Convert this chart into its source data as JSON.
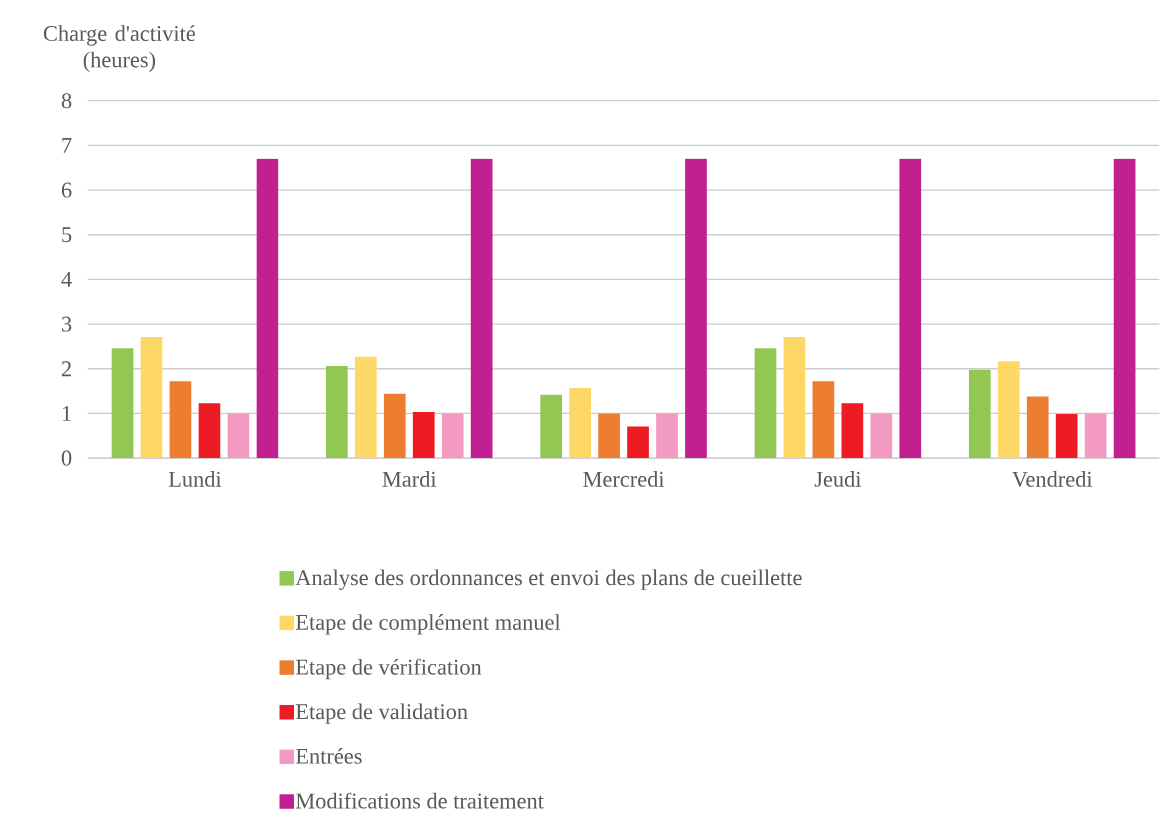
{
  "chart_data": {
    "type": "bar",
    "ylabel": "Charge d'activité (heures)",
    "categories": [
      "Lundi",
      "Mardi",
      "Mercredi",
      "Jeudi",
      "Vendredi"
    ],
    "series": [
      {
        "name": "Analyse des ordonnances et envoi des plans de cueillette",
        "color": "#92c754",
        "values": [
          2.46,
          2.06,
          1.42,
          2.46,
          1.98
        ]
      },
      {
        "name": "Etape de complément manuel",
        "color": "#fdd866",
        "values": [
          2.71,
          2.27,
          1.57,
          2.71,
          2.17
        ]
      },
      {
        "name": "Etape de vérification",
        "color": "#ed7d31",
        "values": [
          1.72,
          1.44,
          1.0,
          1.72,
          1.38
        ]
      },
      {
        "name": "Etape de validation",
        "color": "#ed1c24",
        "values": [
          1.23,
          1.03,
          0.71,
          1.23,
          0.99
        ]
      },
      {
        "name": "Entrées",
        "color": "#f29ac2",
        "values": [
          1.0,
          1.0,
          1.0,
          1.0,
          1.0
        ]
      },
      {
        "name": "Modifications de traitement",
        "color": "#c21f91",
        "values": [
          6.7,
          6.7,
          6.7,
          6.7,
          6.7
        ]
      }
    ],
    "ylim": [
      0,
      8
    ],
    "yticks": [
      0,
      1,
      2,
      3,
      4,
      5,
      6,
      7,
      8
    ],
    "grid": "y",
    "legend": "bottom"
  }
}
